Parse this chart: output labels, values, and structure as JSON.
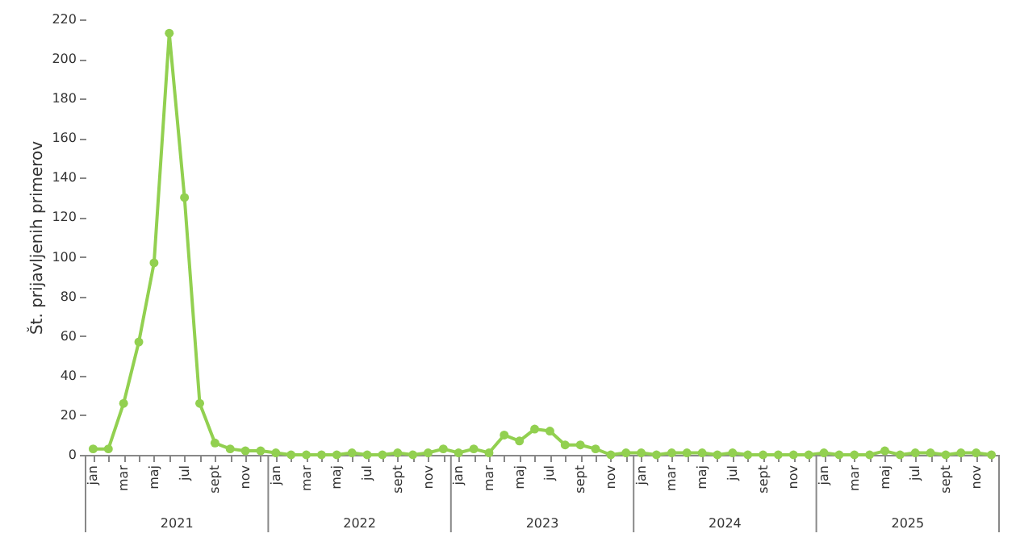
{
  "chart_data": {
    "type": "line",
    "ylabel": "Št. prijavljenih primerov",
    "categories": [
      "jan",
      null,
      "mar",
      null,
      "maj",
      null,
      "jul",
      null,
      "sept",
      null,
      "nov",
      null,
      "jan",
      null,
      "mar",
      null,
      "maj",
      null,
      "jul",
      null,
      "sept",
      null,
      "nov",
      null,
      "jan",
      null,
      "mar",
      null,
      "maj",
      null,
      "jul",
      null,
      "sept",
      null,
      "nov",
      null,
      "jan",
      null,
      "mar",
      null,
      "maj",
      null,
      "jul",
      null,
      "sept",
      null,
      "nov",
      null,
      "jan",
      null,
      "mar",
      null,
      "maj",
      null,
      "jul",
      null,
      "sept",
      null,
      "nov",
      null
    ],
    "series": [
      {
        "color": "#92d050",
        "values": [
          3,
          3,
          26,
          57,
          97,
          213,
          130,
          26,
          6,
          3,
          2,
          2,
          1,
          0,
          0,
          0,
          0,
          1,
          0,
          0,
          1,
          0,
          1,
          3,
          1,
          3,
          1,
          10,
          7,
          13,
          12,
          5,
          5,
          3,
          0,
          1,
          1,
          0,
          1,
          1,
          1,
          0,
          1,
          0,
          0,
          0,
          0,
          0,
          1,
          0,
          0,
          0,
          2,
          0,
          1,
          1,
          0,
          1,
          1,
          0
        ]
      }
    ],
    "ylim": [
      0,
      220
    ],
    "yticks": [
      0,
      20,
      40,
      60,
      80,
      100,
      120,
      140,
      160,
      180,
      200,
      220
    ],
    "annotations": [
      "2021",
      "2022",
      "2023",
      "2024",
      "2025"
    ],
    "grid": false,
    "marker": "circle",
    "line_style": "solid"
  }
}
